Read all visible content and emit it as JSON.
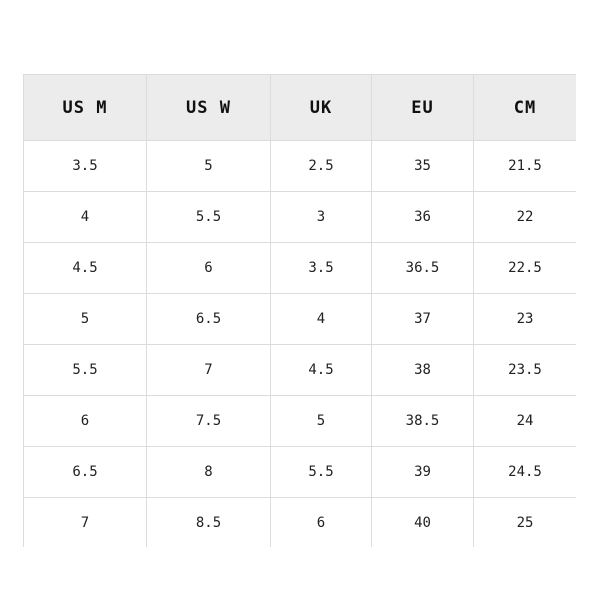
{
  "size_chart": {
    "headers": [
      "US M",
      "US W",
      "UK",
      "EU",
      "CM"
    ],
    "rows": [
      [
        "3.5",
        "5",
        "2.5",
        "35",
        "21.5"
      ],
      [
        "4",
        "5.5",
        "3",
        "36",
        "22"
      ],
      [
        "4.5",
        "6",
        "3.5",
        "36.5",
        "22.5"
      ],
      [
        "5",
        "6.5",
        "4",
        "37",
        "23"
      ],
      [
        "5.5",
        "7",
        "4.5",
        "38",
        "23.5"
      ],
      [
        "6",
        "7.5",
        "5",
        "38.5",
        "24"
      ],
      [
        "6.5",
        "8",
        "5.5",
        "39",
        "24.5"
      ],
      [
        "7",
        "8.5",
        "6",
        "40",
        "25"
      ]
    ]
  }
}
